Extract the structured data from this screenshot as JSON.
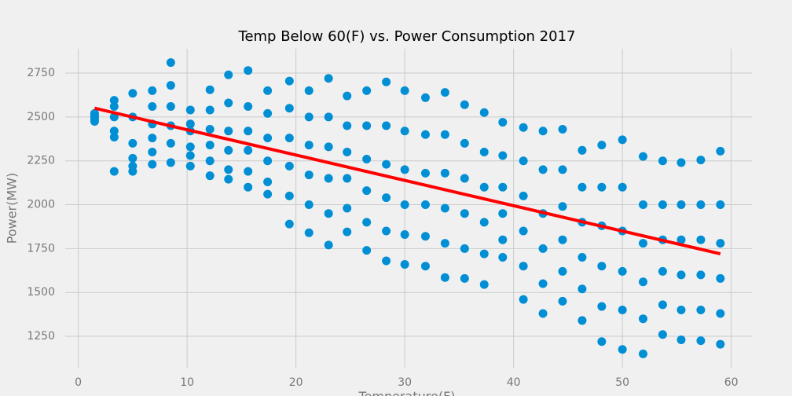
{
  "chart_data": {
    "type": "scatter",
    "title": "Temp Below 60(F) vs. Power Consumption 2017",
    "xlabel": "Temperature(F)",
    "ylabel": "Power(MW)",
    "xlim": [
      -1.2,
      61.9
    ],
    "ylim": [
      1071,
      2889
    ],
    "xticks": [
      0,
      10,
      20,
      30,
      40,
      50,
      60
    ],
    "yticks": [
      1250,
      1500,
      1750,
      2000,
      2250,
      2500,
      2750
    ],
    "grid": true,
    "series": [
      {
        "type": "scatter",
        "color": "#008fd5",
        "x": [
          1.5,
          1.5,
          1.5,
          1.5,
          1.5,
          1.5,
          3.3,
          3.3,
          3.3,
          3.3,
          3.3,
          3.3,
          5,
          5,
          5,
          5,
          5,
          5,
          6.8,
          6.8,
          6.8,
          6.8,
          6.8,
          6.8,
          8.5,
          8.5,
          8.5,
          8.5,
          8.5,
          8.5,
          10.3,
          10.3,
          10.3,
          10.3,
          10.3,
          10.3,
          12.1,
          12.1,
          12.1,
          12.1,
          12.1,
          12.1,
          13.8,
          13.8,
          13.8,
          13.8,
          13.8,
          13.8,
          15.6,
          15.6,
          15.6,
          15.6,
          15.6,
          15.6,
          17.4,
          17.4,
          17.4,
          17.4,
          17.4,
          17.4,
          19.4,
          19.4,
          19.4,
          19.4,
          19.4,
          19.4,
          21.2,
          21.2,
          21.2,
          21.2,
          21.2,
          21.2,
          23,
          23,
          23,
          23,
          23,
          23,
          24.7,
          24.7,
          24.7,
          24.7,
          24.7,
          24.7,
          26.5,
          26.5,
          26.5,
          26.5,
          26.5,
          26.5,
          28.3,
          28.3,
          28.3,
          28.3,
          28.3,
          28.3,
          30,
          30,
          30,
          30,
          30,
          30,
          31.9,
          31.9,
          31.9,
          31.9,
          31.9,
          31.9,
          33.7,
          33.7,
          33.7,
          33.7,
          33.7,
          33.7,
          35.5,
          35.5,
          35.5,
          35.5,
          35.5,
          35.5,
          37.3,
          37.3,
          37.3,
          37.3,
          37.3,
          37.3,
          39,
          39,
          39,
          39,
          39,
          39,
          40.9,
          40.9,
          40.9,
          40.9,
          40.9,
          40.9,
          42.7,
          42.7,
          42.7,
          42.7,
          42.7,
          42.7,
          44.5,
          44.5,
          44.5,
          44.5,
          44.5,
          44.5,
          46.3,
          46.3,
          46.3,
          46.3,
          46.3,
          46.3,
          48.1,
          48.1,
          48.1,
          48.1,
          48.1,
          48.1,
          50,
          50,
          50,
          50,
          50,
          50,
          51.9,
          51.9,
          51.9,
          51.9,
          51.9,
          51.9,
          53.7,
          53.7,
          53.7,
          53.7,
          53.7,
          53.7,
          55.4,
          55.4,
          55.4,
          55.4,
          55.4,
          55.4,
          57.2,
          57.2,
          57.2,
          57.2,
          57.2,
          57.2,
          59,
          59,
          59,
          59,
          59,
          59
        ],
        "y": [
          2475,
          2485,
          2495,
          2505,
          2510,
          2520,
          2190,
          2385,
          2420,
          2500,
          2560,
          2595,
          2190,
          2220,
          2265,
          2350,
          2500,
          2635,
          2230,
          2300,
          2380,
          2460,
          2560,
          2650,
          2240,
          2350,
          2450,
          2560,
          2680,
          2810,
          2220,
          2280,
          2330,
          2420,
          2460,
          2540,
          2165,
          2250,
          2340,
          2430,
          2540,
          2655,
          2145,
          2200,
          2310,
          2420,
          2580,
          2740,
          2100,
          2190,
          2310,
          2420,
          2560,
          2765,
          2060,
          2130,
          2250,
          2380,
          2520,
          2650,
          1890,
          2050,
          2220,
          2380,
          2550,
          2705,
          1840,
          2000,
          2170,
          2340,
          2500,
          2650,
          1770,
          1950,
          2150,
          2330,
          2500,
          2720,
          1845,
          1980,
          2150,
          2300,
          2450,
          2620,
          1740,
          1900,
          2080,
          2260,
          2450,
          2650,
          1680,
          1850,
          2040,
          2230,
          2450,
          2700,
          1660,
          1830,
          2000,
          2200,
          2420,
          2650,
          1650,
          1820,
          2000,
          2180,
          2400,
          2610,
          1585,
          1780,
          1980,
          2180,
          2400,
          2640,
          1580,
          1750,
          1950,
          2150,
          2350,
          2570,
          1545,
          1720,
          1900,
          2100,
          2300,
          2525,
          1700,
          1800,
          1950,
          2100,
          2280,
          2470,
          1460,
          1650,
          1850,
          2050,
          2250,
          2440,
          1380,
          1550,
          1750,
          1950,
          2200,
          2420,
          1450,
          1620,
          1800,
          1990,
          2200,
          2430,
          1340,
          1520,
          1700,
          1900,
          2100,
          2310,
          1220,
          1420,
          1650,
          1880,
          2100,
          2340,
          1175,
          1400,
          1620,
          1850,
          2100,
          2370,
          1150,
          1350,
          1560,
          1780,
          2000,
          2275,
          1260,
          1430,
          1620,
          1800,
          2000,
          2250,
          1230,
          1400,
          1600,
          1800,
          2000,
          2240,
          1225,
          1400,
          1600,
          1800,
          2000,
          2255,
          1205,
          1380,
          1580,
          1780,
          2000,
          2305
        ]
      },
      {
        "type": "line",
        "color": "#ff0000",
        "x": [
          1.5,
          59
        ],
        "y": [
          2550,
          1720
        ]
      }
    ]
  }
}
